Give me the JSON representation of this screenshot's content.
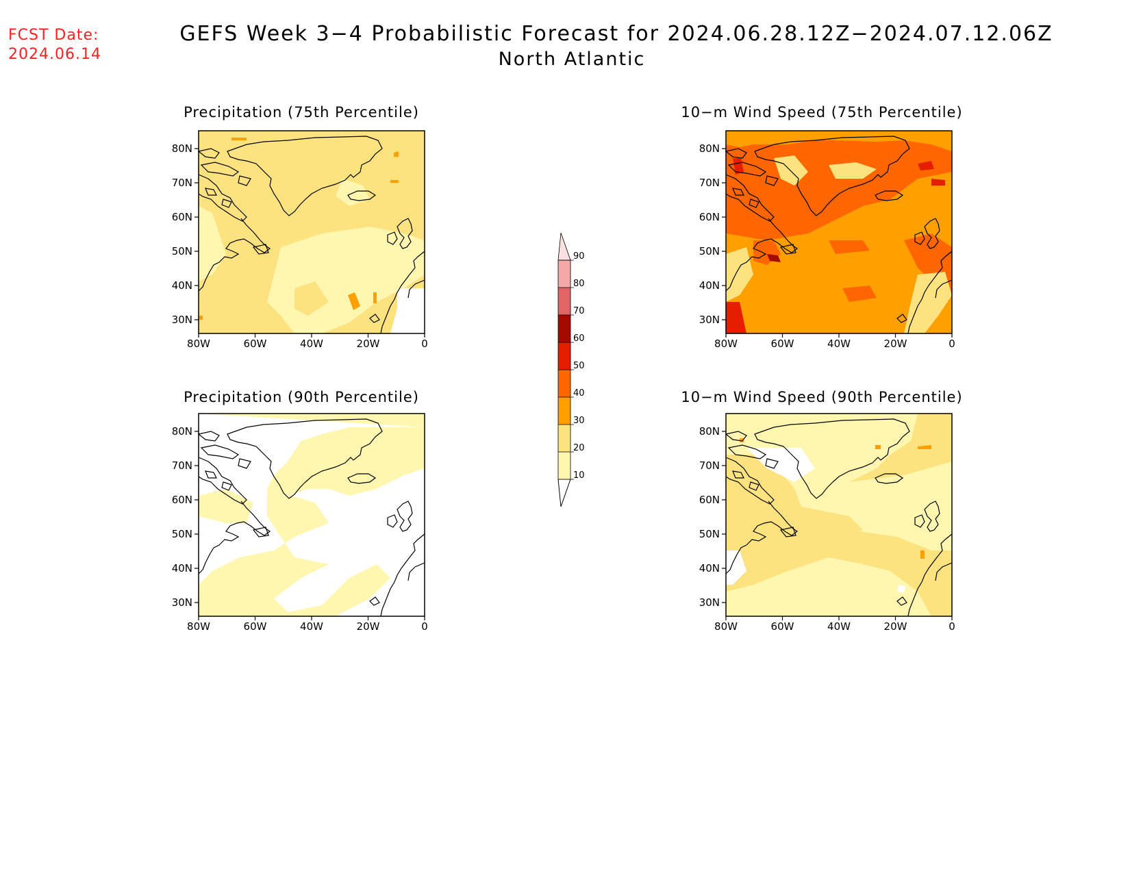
{
  "header": {
    "fcst_label": "FCST Date:",
    "fcst_date": "2024.06.14",
    "title": "GEFS Week 3−4 Probabilistic Forecast for 2024.06.28.12Z−2024.07.12.06Z",
    "subtitle": "North Atlantic"
  },
  "panels": [
    {
      "id": "precip75",
      "title": "Precipitation (75th Percentile)"
    },
    {
      "id": "wind75",
      "title": "10−m Wind Speed (75th Percentile)"
    },
    {
      "id": "precip90",
      "title": "Precipitation (90th Percentile)"
    },
    {
      "id": "wind90",
      "title": "10−m Wind Speed (90th Percentile)"
    }
  ],
  "axes": {
    "lat_ticks": [
      "80N",
      "70N",
      "60N",
      "50N",
      "40N",
      "30N"
    ],
    "lon_ticks": [
      "80W",
      "60W",
      "40W",
      "20W",
      "0"
    ]
  },
  "colorbar": {
    "levels": [
      "10",
      "20",
      "30",
      "40",
      "50",
      "60",
      "70",
      "80",
      "90"
    ],
    "colors": [
      "#fff6b0",
      "#fde380",
      "#ffa000",
      "#ff6600",
      "#e61e00",
      "#a50a00",
      "#e06666",
      "#f5a8a8",
      "#fde0e0"
    ]
  }
}
